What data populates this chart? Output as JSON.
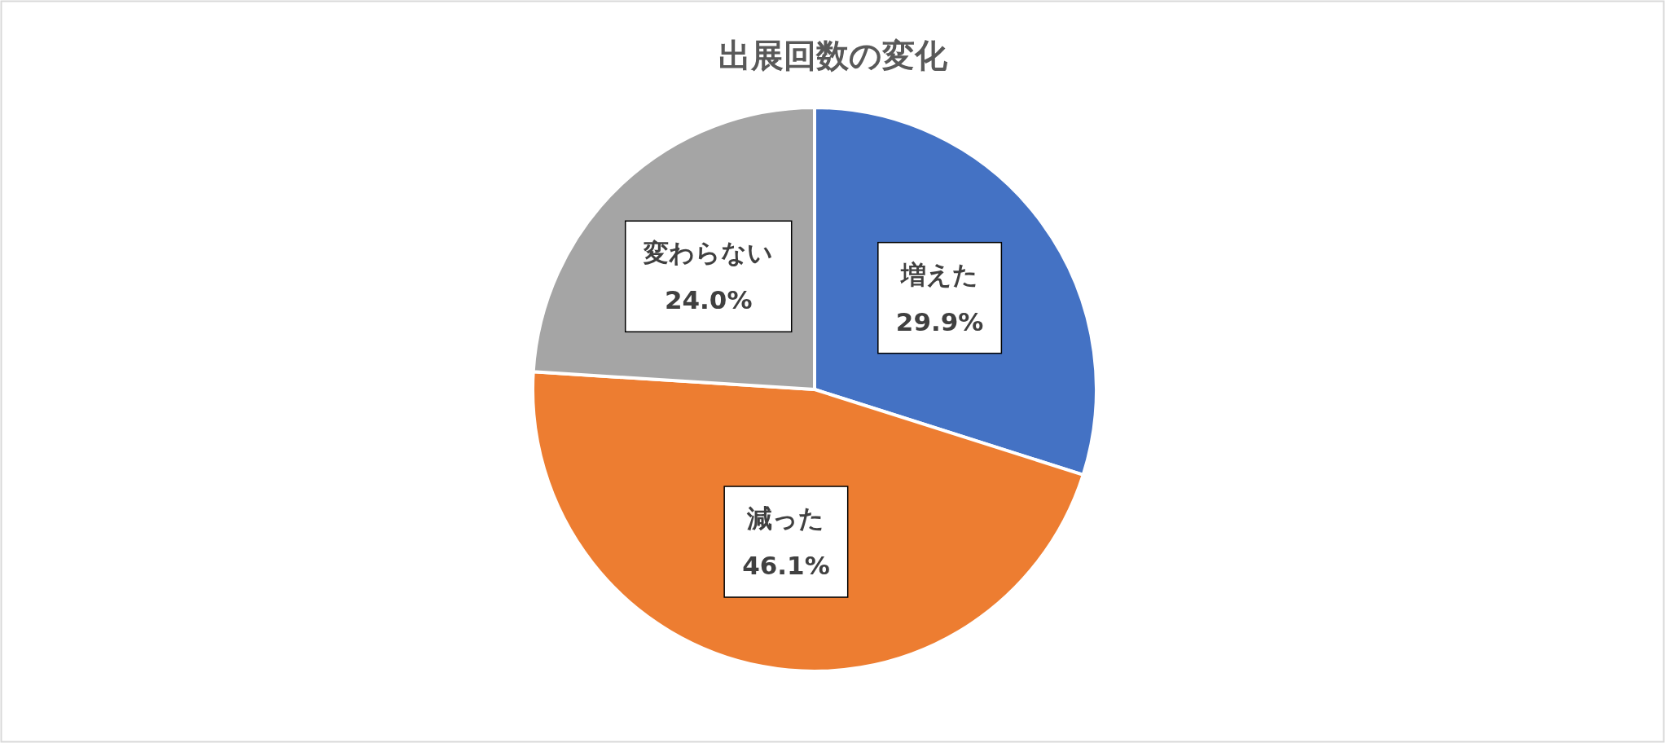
{
  "chart_data": {
    "type": "pie",
    "title": "出展回数の変化",
    "categories": [
      "増えた",
      "減った",
      "変わらない"
    ],
    "values": [
      29.9,
      46.1,
      24.0
    ],
    "colors": [
      "#4472c4",
      "#ed7d31",
      "#a5a5a5"
    ],
    "value_labels": [
      "29.9%",
      "46.1%",
      "24.0%"
    ]
  }
}
